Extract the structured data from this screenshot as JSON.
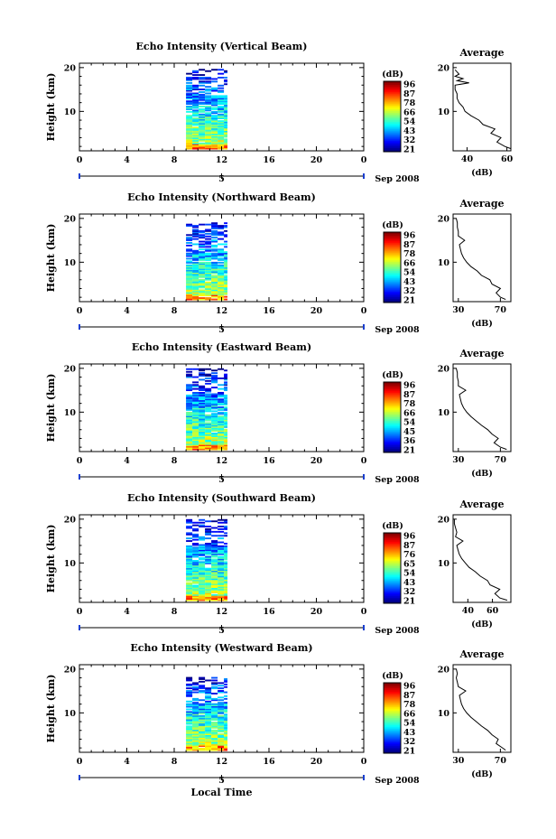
{
  "figure": {
    "xlabel": "Local Time",
    "date_label": "Sep 2008",
    "day_label": "5",
    "x_ticks": [
      "0",
      "4",
      "8",
      "12",
      "16",
      "20",
      "0"
    ],
    "y_ticks": [
      "20",
      "10"
    ],
    "ylabel": "Height (km)",
    "colorbar_unit": "(dB)",
    "avg_title": "Average",
    "avg_xlabel": "(dB)"
  },
  "chart_data": [
    {
      "type": "heatmap",
      "title": "Echo Intensity (Vertical Beam)",
      "xlabel": "Local Time",
      "ylabel": "Height (km)",
      "xlim": [
        0,
        24
      ],
      "ylim": [
        1,
        21
      ],
      "data_time_range": [
        9,
        12.5
      ],
      "echo_top_km": 19.5,
      "colorbar": {
        "label": "(dB)",
        "ticks": [
          "96",
          "87",
          "78",
          "66",
          "54",
          "43",
          "32",
          "21"
        ]
      },
      "average": {
        "title": "Average",
        "xlabel": "(dB)",
        "xticks": [
          "40",
          "60"
        ],
        "xlim": [
          33,
          62
        ],
        "height_km": [
          1.5,
          2,
          3,
          4,
          5,
          6,
          7,
          8,
          9,
          10,
          11,
          12,
          13,
          14,
          15,
          16,
          16.5,
          17,
          17.5,
          18,
          18.5,
          19,
          19.5
        ],
        "db": [
          62,
          59,
          55,
          57,
          52,
          54,
          48,
          46,
          42,
          39,
          38,
          36,
          35,
          35,
          34,
          34,
          41,
          35,
          38,
          34,
          36,
          35,
          34
        ]
      }
    },
    {
      "type": "heatmap",
      "title": "Echo Intensity (Northward Beam)",
      "xlabel": "Local Time",
      "ylabel": "Height (km)",
      "xlim": [
        0,
        24
      ],
      "ylim": [
        1,
        21
      ],
      "data_time_range": [
        9,
        12.5
      ],
      "echo_top_km": 19,
      "colorbar": {
        "label": "(dB)",
        "ticks": [
          "96",
          "87",
          "78",
          "66",
          "54",
          "43",
          "32",
          "21"
        ]
      },
      "average": {
        "title": "Average",
        "xlabel": "(dB)",
        "xticks": [
          "30",
          "70"
        ],
        "xlim": [
          25,
          80
        ],
        "height_km": [
          1.5,
          2,
          3,
          4,
          5,
          6,
          7,
          8,
          9,
          10,
          11,
          12,
          13,
          14,
          15,
          16,
          17,
          18,
          19,
          20
        ],
        "db": [
          75,
          70,
          66,
          70,
          62,
          60,
          52,
          48,
          42,
          38,
          35,
          33,
          32,
          31,
          36,
          30,
          30,
          29,
          29,
          28
        ]
      }
    },
    {
      "type": "heatmap",
      "title": "Echo Intensity (Eastward Beam)",
      "xlabel": "Local Time",
      "ylabel": "Height (km)",
      "xlim": [
        0,
        24
      ],
      "ylim": [
        1,
        21
      ],
      "data_time_range": [
        9,
        12.5
      ],
      "echo_top_km": 20,
      "colorbar": {
        "label": "(dB)",
        "ticks": [
          "96",
          "87",
          "78",
          "66",
          "54",
          "45",
          "36",
          "21"
        ]
      },
      "average": {
        "title": "Average",
        "xlabel": "(dB)",
        "xticks": [
          "30",
          "70"
        ],
        "xlim": [
          25,
          80
        ],
        "height_km": [
          1.5,
          2,
          3,
          4,
          5,
          6,
          7,
          8,
          9,
          10,
          11,
          12,
          13,
          14,
          15,
          16,
          17,
          18,
          19,
          20
        ],
        "db": [
          76,
          70,
          64,
          68,
          62,
          58,
          52,
          47,
          42,
          38,
          35,
          33,
          32,
          31,
          37,
          30,
          30,
          29,
          29,
          28
        ]
      }
    },
    {
      "type": "heatmap",
      "title": "Echo Intensity (Southward Beam)",
      "xlabel": "Local Time",
      "ylabel": "Height (km)",
      "xlim": [
        0,
        24
      ],
      "ylim": [
        1,
        21
      ],
      "data_time_range": [
        9,
        12.5
      ],
      "echo_top_km": 20,
      "colorbar": {
        "label": "(dB)",
        "ticks": [
          "96",
          "87",
          "76",
          "65",
          "54",
          "43",
          "32",
          "21"
        ]
      },
      "average": {
        "title": "Average",
        "xlabel": "(dB)",
        "xticks": [
          "40",
          "60"
        ],
        "xlim": [
          28,
          75
        ],
        "height_km": [
          1.5,
          2,
          3,
          4,
          5,
          6,
          7,
          8,
          9,
          10,
          11,
          12,
          13,
          14,
          15,
          16,
          17,
          18,
          19,
          20
        ],
        "db": [
          72,
          66,
          62,
          66,
          58,
          56,
          50,
          46,
          41,
          38,
          35,
          33,
          32,
          31,
          36,
          30,
          31,
          30,
          29,
          29
        ]
      }
    },
    {
      "type": "heatmap",
      "title": "Echo Intensity (Westward Beam)",
      "xlabel": "Local Time",
      "ylabel": "Height (km)",
      "xlim": [
        0,
        24
      ],
      "ylim": [
        1,
        21
      ],
      "data_time_range": [
        9,
        12.5
      ],
      "echo_top_km": 18,
      "colorbar": {
        "label": "(dB)",
        "ticks": [
          "96",
          "87",
          "78",
          "66",
          "54",
          "43",
          "32",
          "21"
        ]
      },
      "average": {
        "title": "Average",
        "xlabel": "(dB)",
        "xticks": [
          "30",
          "70"
        ],
        "xlim": [
          25,
          80
        ],
        "height_km": [
          1.5,
          2,
          3,
          4,
          5,
          6,
          7,
          8,
          9,
          10,
          11,
          12,
          13,
          14,
          15,
          16,
          17,
          18,
          19,
          20
        ],
        "db": [
          75,
          72,
          66,
          68,
          62,
          58,
          52,
          47,
          42,
          38,
          35,
          33,
          32,
          31,
          37,
          30,
          29,
          28,
          29,
          28
        ]
      }
    }
  ]
}
